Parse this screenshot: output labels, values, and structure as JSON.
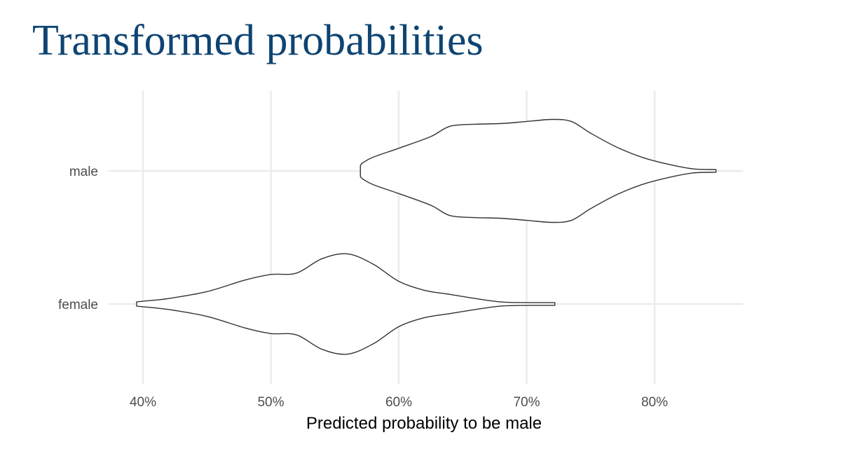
{
  "slide": {
    "title": "Transformed probabilities"
  },
  "chart_data": {
    "type": "violin",
    "orientation": "horizontal",
    "title": "Transformed probabilities",
    "xlabel": "Predicted probability to be male",
    "ylabel": "",
    "xlim": [
      0.375,
      0.87
    ],
    "x_ticks": [
      0.4,
      0.5,
      0.6,
      0.7,
      0.8
    ],
    "x_tick_labels": [
      "40%",
      "50%",
      "60%",
      "70%",
      "80%"
    ],
    "categories": [
      "female",
      "male"
    ],
    "grid": true,
    "series": [
      {
        "name": "male",
        "min": 0.57,
        "max": 0.848,
        "density": [
          [
            0.57,
            0.08
          ],
          [
            0.572,
            0.12
          ],
          [
            0.58,
            0.2
          ],
          [
            0.6,
            0.33
          ],
          [
            0.625,
            0.5
          ],
          [
            0.64,
            0.65
          ],
          [
            0.66,
            0.68
          ],
          [
            0.68,
            0.69
          ],
          [
            0.7,
            0.72
          ],
          [
            0.72,
            0.75
          ],
          [
            0.735,
            0.72
          ],
          [
            0.75,
            0.55
          ],
          [
            0.77,
            0.35
          ],
          [
            0.79,
            0.2
          ],
          [
            0.81,
            0.1
          ],
          [
            0.83,
            0.03
          ],
          [
            0.848,
            0.02
          ]
        ]
      },
      {
        "name": "female",
        "min": 0.395,
        "max": 0.722,
        "density": [
          [
            0.395,
            0.03
          ],
          [
            0.4,
            0.04
          ],
          [
            0.42,
            0.08
          ],
          [
            0.45,
            0.18
          ],
          [
            0.48,
            0.35
          ],
          [
            0.5,
            0.43
          ],
          [
            0.52,
            0.45
          ],
          [
            0.54,
            0.66
          ],
          [
            0.56,
            0.73
          ],
          [
            0.58,
            0.58
          ],
          [
            0.6,
            0.33
          ],
          [
            0.62,
            0.2
          ],
          [
            0.64,
            0.14
          ],
          [
            0.66,
            0.08
          ],
          [
            0.68,
            0.03
          ],
          [
            0.7,
            0.02
          ],
          [
            0.722,
            0.02
          ]
        ]
      }
    ]
  }
}
